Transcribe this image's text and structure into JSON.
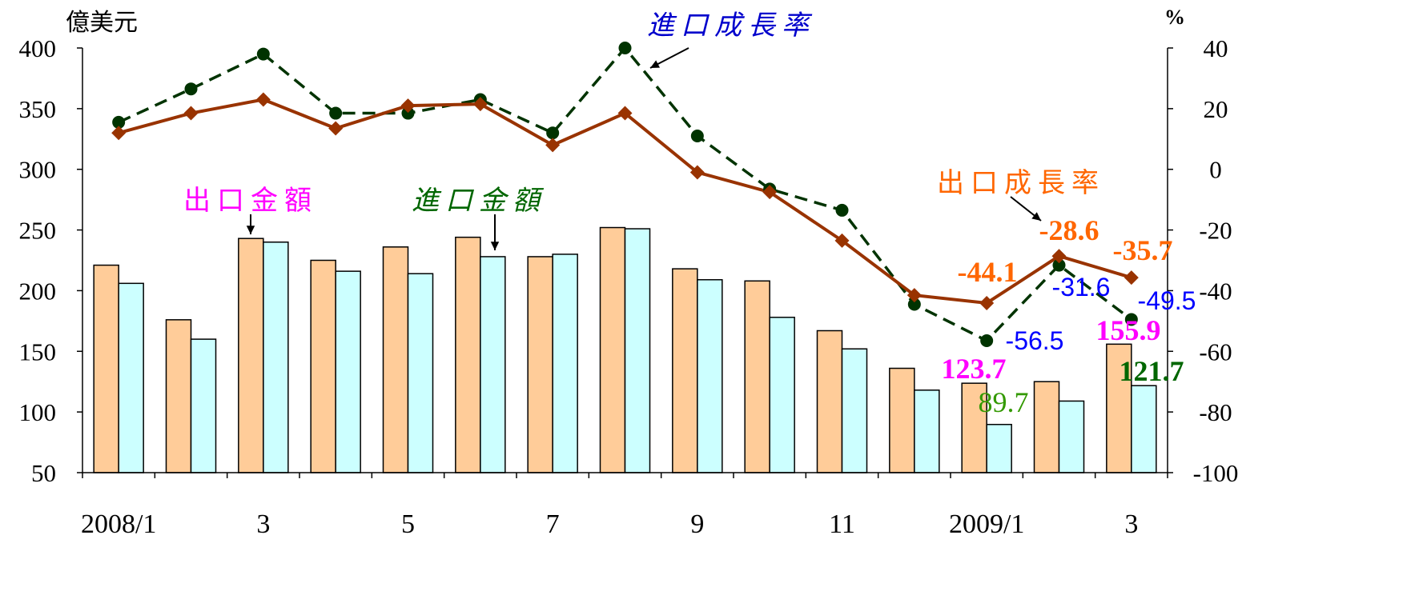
{
  "chart_data": {
    "type": "bar+line",
    "categories": [
      "2008/1",
      "2008/2",
      "2008/3",
      "2008/4",
      "2008/5",
      "2008/6",
      "2008/7",
      "2008/8",
      "2008/9",
      "2008/10",
      "2008/11",
      "2008/12",
      "2009/1",
      "2009/2",
      "2009/3"
    ],
    "x_tick_labels": [
      "2008/1",
      "",
      "3",
      "",
      "5",
      "",
      "7",
      "",
      "9",
      "",
      "11",
      "",
      "2009/1",
      "",
      "3"
    ],
    "left_axis": {
      "label": "億美元",
      "min": 50,
      "max": 400,
      "ticks": [
        50,
        100,
        150,
        200,
        250,
        300,
        350,
        400
      ]
    },
    "right_axis": {
      "label": "%",
      "min": -100,
      "max": 40,
      "ticks": [
        -100,
        -80,
        -60,
        -40,
        -20,
        0,
        20,
        40
      ]
    },
    "bar_series": [
      {
        "name": "出口金額",
        "color": "#FFCC99",
        "values": [
          221,
          176,
          243,
          225,
          236,
          244,
          228,
          252,
          218,
          208,
          167,
          136,
          123.7,
          125,
          155.9
        ]
      },
      {
        "name": "進口金額",
        "color": "#CCFFFF",
        "values": [
          206,
          160,
          240,
          216,
          214,
          228,
          230,
          251,
          209,
          178,
          152,
          118,
          89.7,
          109,
          121.7
        ]
      }
    ],
    "line_series": [
      {
        "name": "出口成長率",
        "color": "#993300",
        "marker": "diamond",
        "values": [
          12,
          18.5,
          23,
          13.5,
          21,
          21.5,
          8,
          18.5,
          -1,
          -7.5,
          -23.5,
          -41.5,
          -44.1,
          -28.6,
          -35.7
        ]
      },
      {
        "name": "進口成長率",
        "color": "#003300",
        "marker": "circle",
        "dashed": true,
        "values": [
          15.5,
          26.5,
          38,
          18.5,
          18.5,
          23,
          12,
          40,
          11,
          -6.5,
          -13.5,
          -44.5,
          -56.5,
          -31.6,
          -49.5
        ]
      }
    ],
    "series_labels": {
      "export_amount": "出口金額",
      "import_amount": "進口金額",
      "import_growth": "進口成長率",
      "export_growth": "出口成長率"
    },
    "data_labels": {
      "export_growth_jan": "-44.1",
      "export_growth_feb": "-28.6",
      "export_growth_mar": "-35.7",
      "import_growth_jan": "-56.5",
      "import_growth_feb": "-31.6",
      "import_growth_mar": "-49.5",
      "export_amount_jan": "123.7",
      "export_amount_mar": "155.9",
      "import_amount_jan": "89.7",
      "import_amount_mar": "121.7"
    }
  }
}
